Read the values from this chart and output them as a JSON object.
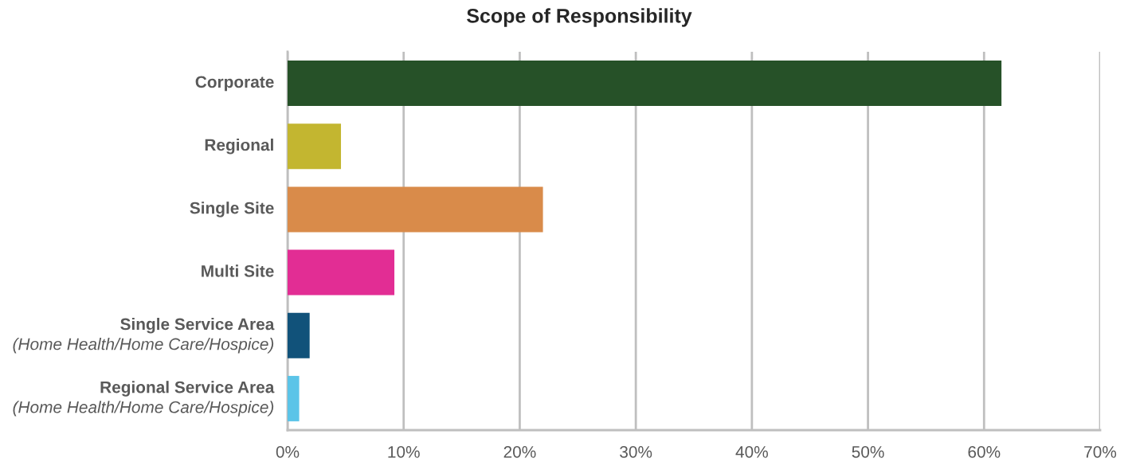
{
  "chart_data": {
    "type": "bar",
    "orientation": "horizontal",
    "title": "Scope of Responsibility",
    "categories": [
      "Corporate",
      "Regional",
      "Single Site",
      "Multi Site",
      "Single Service Area\n(Home Health/Home Care/Hospice)",
      "Regional Service Area\n(Home Health/Home Care/Hospice)"
    ],
    "values": [
      61.5,
      4.6,
      22.0,
      9.2,
      1.9,
      1.0
    ],
    "colors": [
      "#265128",
      "#c3b630",
      "#d98b4a",
      "#e22d94",
      "#11527a",
      "#5bc4e8"
    ],
    "xlim": [
      0,
      70
    ],
    "xticks": [
      {
        "value": 0,
        "label": "0%"
      },
      {
        "value": 10,
        "label": "10%"
      },
      {
        "value": 20,
        "label": "20%"
      },
      {
        "value": 30,
        "label": "30%"
      },
      {
        "value": 40,
        "label": "40%"
      },
      {
        "value": 50,
        "label": "50%"
      },
      {
        "value": 60,
        "label": "60%"
      },
      {
        "value": 70,
        "label": "70%"
      }
    ],
    "grid": "x"
  }
}
